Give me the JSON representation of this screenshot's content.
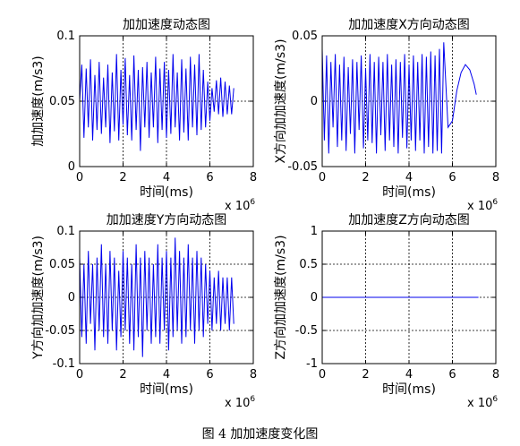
{
  "figure_caption": "图 4 加加速度变化图",
  "colors": {
    "line": "#0000ee",
    "axes": "#000000",
    "grid": "#000000",
    "background": "#ffffff"
  },
  "chart_data": [
    {
      "type": "line",
      "title": "加加速度动态图",
      "xlabel": "时间(ms)",
      "ylabel": "加加速度(m/s3)",
      "x_exponent": "x 10^6",
      "xlim": [
        0,
        8
      ],
      "ylim": [
        0,
        0.1
      ],
      "xticks": [
        "0",
        "2",
        "4",
        "6",
        "8"
      ],
      "yticks": [
        "0",
        "0.05",
        "0.1"
      ],
      "grid": true,
      "series": [
        {
          "x": [
            0.0,
            0.1,
            0.2,
            0.3,
            0.4,
            0.5,
            0.6,
            0.7,
            0.8,
            0.9,
            1.0,
            1.1,
            1.2,
            1.3,
            1.4,
            1.5,
            1.6,
            1.7,
            1.8,
            1.9,
            2.0,
            2.1,
            2.2,
            2.3,
            2.4,
            2.5,
            2.6,
            2.7,
            2.8,
            2.9,
            3.0,
            3.1,
            3.2,
            3.3,
            3.4,
            3.5,
            3.6,
            3.7,
            3.8,
            3.9,
            4.0,
            4.1,
            4.2,
            4.3,
            4.4,
            4.5,
            4.6,
            4.7,
            4.8,
            4.9,
            5.0,
            5.1,
            5.2,
            5.3,
            5.4,
            5.5,
            5.6,
            5.7,
            5.8,
            5.9,
            6.0,
            6.1,
            6.2,
            6.3,
            6.4,
            6.5,
            6.6,
            6.7,
            6.8,
            6.9,
            7.0,
            7.1
          ],
          "y": [
            0.05,
            0.078,
            0.022,
            0.075,
            0.03,
            0.082,
            0.02,
            0.07,
            0.028,
            0.08,
            0.025,
            0.068,
            0.03,
            0.078,
            0.018,
            0.072,
            0.027,
            0.086,
            0.02,
            0.074,
            0.032,
            0.083,
            0.024,
            0.07,
            0.02,
            0.085,
            0.028,
            0.074,
            0.012,
            0.076,
            0.03,
            0.08,
            0.022,
            0.072,
            0.03,
            0.084,
            0.018,
            0.075,
            0.028,
            0.08,
            0.022,
            0.074,
            0.025,
            0.086,
            0.03,
            0.072,
            0.02,
            0.082,
            0.026,
            0.075,
            0.02,
            0.084,
            0.03,
            0.078,
            0.024,
            0.086,
            0.028,
            0.074,
            0.03,
            0.065,
            0.035,
            0.06,
            0.042,
            0.066,
            0.04,
            0.068,
            0.038,
            0.065,
            0.04,
            0.062,
            0.04,
            0.06
          ]
        }
      ]
    },
    {
      "type": "line",
      "title": "加加速度X方向动态图",
      "xlabel": "时间(ms)",
      "ylabel": "X方向加加速度(m/s3)",
      "x_exponent": "x 10^6",
      "xlim": [
        0,
        8
      ],
      "ylim": [
        -0.05,
        0.05
      ],
      "xticks": [
        "0",
        "2",
        "4",
        "6",
        "8"
      ],
      "yticks": [
        "-0.05",
        "0",
        "0.05"
      ],
      "grid": true,
      "series": [
        {
          "x": [
            0.0,
            0.1,
            0.2,
            0.3,
            0.4,
            0.5,
            0.6,
            0.7,
            0.8,
            0.9,
            1.0,
            1.1,
            1.2,
            1.3,
            1.4,
            1.5,
            1.6,
            1.7,
            1.8,
            1.9,
            2.0,
            2.1,
            2.2,
            2.3,
            2.4,
            2.5,
            2.6,
            2.7,
            2.8,
            2.9,
            3.0,
            3.1,
            3.2,
            3.3,
            3.4,
            3.5,
            3.6,
            3.7,
            3.8,
            3.9,
            4.0,
            4.1,
            4.2,
            4.3,
            4.4,
            4.5,
            4.6,
            4.7,
            4.8,
            4.9,
            5.0,
            5.1,
            5.2,
            5.3,
            5.4,
            5.5,
            5.6,
            5.8,
            6.0,
            6.2,
            6.4,
            6.6,
            6.8,
            7.0,
            7.1
          ],
          "y": [
            0.04,
            -0.03,
            0.035,
            -0.04,
            0.03,
            -0.02,
            0.036,
            -0.035,
            0.028,
            -0.03,
            0.034,
            -0.038,
            0.026,
            -0.025,
            0.032,
            -0.04,
            0.03,
            -0.022,
            0.035,
            -0.036,
            0.025,
            -0.03,
            0.036,
            -0.032,
            0.03,
            -0.04,
            0.034,
            -0.026,
            0.03,
            -0.038,
            0.036,
            -0.03,
            0.028,
            -0.035,
            0.032,
            -0.04,
            0.03,
            -0.028,
            0.036,
            -0.036,
            0.028,
            -0.03,
            0.035,
            -0.038,
            0.03,
            -0.03,
            0.036,
            -0.04,
            0.034,
            -0.035,
            0.038,
            -0.04,
            0.035,
            -0.038,
            0.04,
            -0.04,
            0.045,
            -0.02,
            -0.015,
            0.008,
            0.022,
            0.028,
            0.024,
            0.013,
            0.005
          ]
        }
      ]
    },
    {
      "type": "line",
      "title": "加加速度Y方向动态图",
      "xlabel": "时间(ms)",
      "ylabel": "Y方向加加速度(m/s3)",
      "x_exponent": "x 10^6",
      "xlim": [
        0,
        8
      ],
      "ylim": [
        -0.1,
        0.1
      ],
      "xticks": [
        "0",
        "2",
        "4",
        "6",
        "8"
      ],
      "yticks": [
        "-0.1",
        "-0.05",
        "0",
        "0.05",
        "0.1"
      ],
      "grid": true,
      "series": [
        {
          "x": [
            0.0,
            0.1,
            0.2,
            0.3,
            0.4,
            0.5,
            0.6,
            0.7,
            0.8,
            0.9,
            1.0,
            1.1,
            1.2,
            1.3,
            1.4,
            1.5,
            1.6,
            1.7,
            1.8,
            1.9,
            2.0,
            2.1,
            2.2,
            2.3,
            2.4,
            2.5,
            2.6,
            2.7,
            2.8,
            2.9,
            3.0,
            3.1,
            3.2,
            3.3,
            3.4,
            3.5,
            3.6,
            3.7,
            3.8,
            3.9,
            4.0,
            4.1,
            4.2,
            4.3,
            4.4,
            4.5,
            4.6,
            4.7,
            4.8,
            4.9,
            5.0,
            5.1,
            5.2,
            5.3,
            5.4,
            5.5,
            5.6,
            5.7,
            5.8,
            5.9,
            6.0,
            6.1,
            6.2,
            6.3,
            6.4,
            6.5,
            6.6,
            6.7,
            6.8,
            6.9,
            7.0,
            7.1
          ],
          "y": [
            0.06,
            -0.06,
            0.05,
            -0.07,
            0.07,
            -0.04,
            0.05,
            -0.08,
            0.06,
            -0.05,
            0.08,
            -0.06,
            0.05,
            -0.07,
            0.07,
            -0.05,
            0.06,
            -0.08,
            0.04,
            -0.06,
            0.07,
            -0.05,
            0.06,
            -0.07,
            0.05,
            -0.08,
            0.08,
            -0.06,
            0.06,
            -0.09,
            0.07,
            -0.05,
            0.06,
            -0.07,
            0.05,
            -0.06,
            0.08,
            -0.07,
            0.06,
            -0.05,
            0.07,
            -0.08,
            0.06,
            -0.06,
            0.09,
            -0.05,
            0.07,
            -0.07,
            0.06,
            -0.06,
            0.08,
            -0.05,
            0.06,
            -0.07,
            0.07,
            -0.05,
            0.06,
            -0.06,
            0.05,
            -0.04,
            0.04,
            -0.05,
            0.03,
            -0.04,
            0.04,
            -0.05,
            0.03,
            -0.04,
            0.03,
            -0.05,
            0.03,
            -0.04
          ]
        }
      ]
    },
    {
      "type": "line",
      "title": "加加速度Z方向动态图",
      "xlabel": "时间(ms)",
      "ylabel": "Z方向加加速度(m/s3)",
      "x_exponent": "x 10^6",
      "xlim": [
        0,
        8
      ],
      "ylim": [
        -1,
        1
      ],
      "xticks": [
        "0",
        "2",
        "4",
        "6",
        "8"
      ],
      "yticks": [
        "-1",
        "-0.5",
        "0",
        "0.5",
        "1"
      ],
      "grid": true,
      "series": [
        {
          "x": [
            0,
            7.2
          ],
          "y": [
            0,
            0
          ]
        }
      ]
    }
  ]
}
